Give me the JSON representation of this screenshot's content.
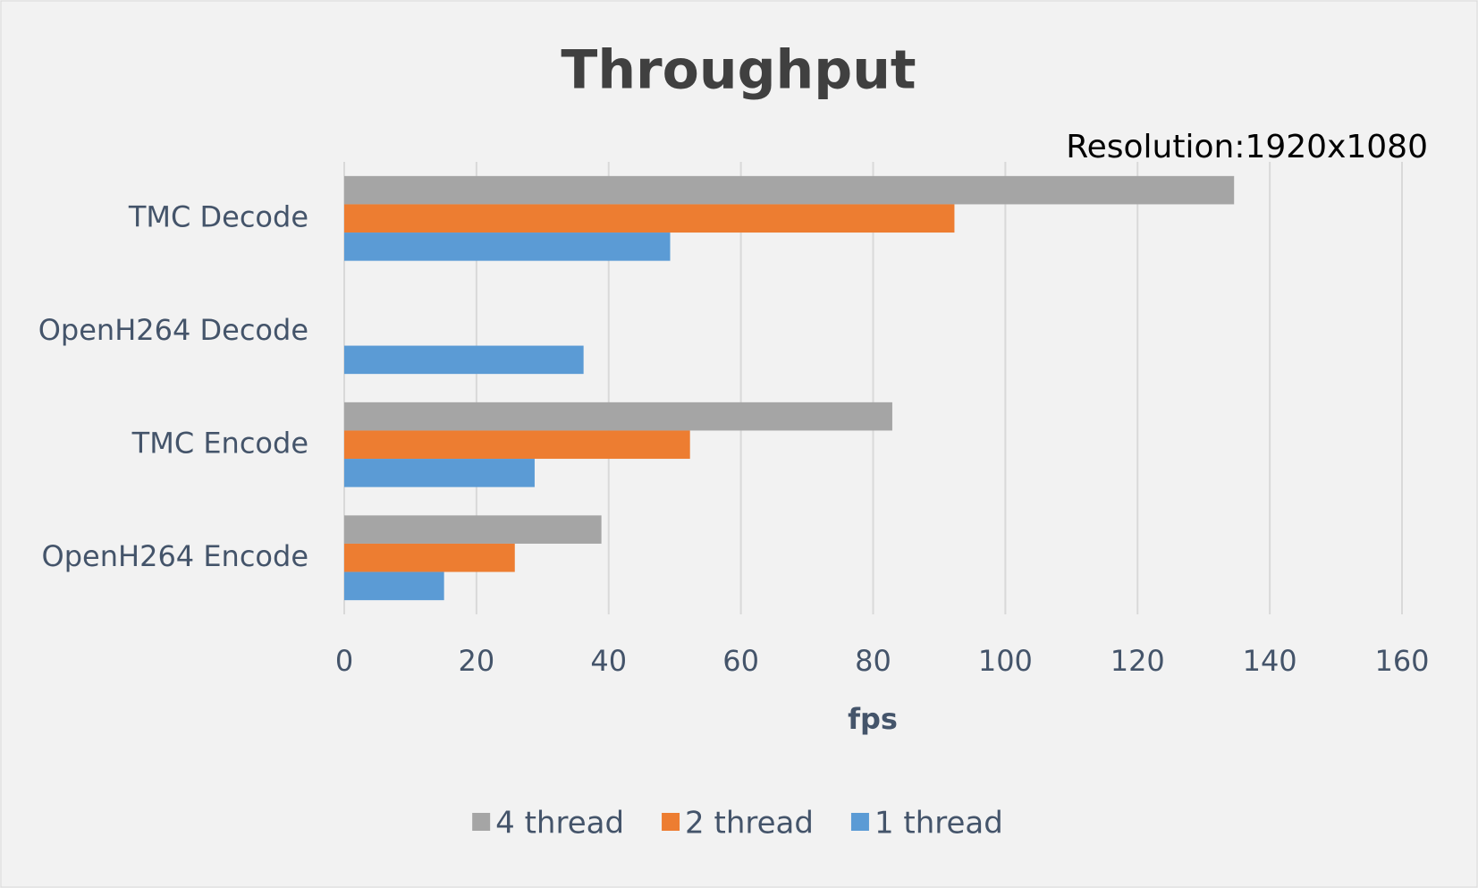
{
  "chart_data": {
    "type": "hbar",
    "title": "Throughput",
    "annotation": "Resolution:1920x1080",
    "xlabel": "fps",
    "categories": [
      "TMC Decode",
      "OpenH264 Decode",
      "TMC Encode",
      "OpenH264 Encode"
    ],
    "series": [
      {
        "name": "4 thread",
        "color": "#a5a5a5",
        "values": [
          134.6,
          null,
          82.9,
          38.9
        ]
      },
      {
        "name": "2 thread",
        "color": "#ed7d31",
        "values": [
          92.3,
          null,
          52.3,
          25.8
        ]
      },
      {
        "name": "1 thread",
        "color": "#5b9bd5",
        "values": [
          49.3,
          36.2,
          28.8,
          15.1
        ]
      }
    ],
    "xlim": [
      0,
      160
    ],
    "xticks": [
      0,
      20,
      40,
      60,
      80,
      100,
      120,
      140,
      160
    ],
    "grid": true,
    "legend": "bottom"
  }
}
